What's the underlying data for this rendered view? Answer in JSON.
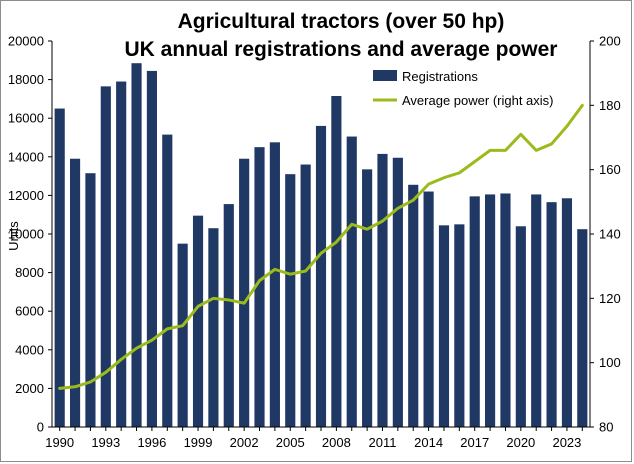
{
  "chart_data": {
    "type": "bar",
    "title": [
      "Agricultural tractors (over 50 hp)",
      "UK annual registrations and average power"
    ],
    "ylabel": "Units",
    "ylim": [
      0,
      20000
    ],
    "y_ticks": [
      "0",
      "2000",
      "4000",
      "6000",
      "8000",
      "10000",
      "12000",
      "14000",
      "16000",
      "18000",
      "20000"
    ],
    "y2lim": [
      80,
      200
    ],
    "y2_ticks": [
      "80",
      "100",
      "120",
      "140",
      "160",
      "180",
      "200"
    ],
    "xlim": [
      1990,
      2024
    ],
    "x_ticks": [
      "1990",
      "1993",
      "1996",
      "1999",
      "2002",
      "2005",
      "2008",
      "2011",
      "2014",
      "2017",
      "2020",
      "2023"
    ],
    "x": [
      1990,
      1991,
      1992,
      1993,
      1994,
      1995,
      1996,
      1997,
      1998,
      1999,
      2000,
      2001,
      2002,
      2003,
      2004,
      2005,
      2006,
      2007,
      2008,
      2009,
      2010,
      2011,
      2012,
      2013,
      2014,
      2015,
      2016,
      2017,
      2018,
      2019,
      2020,
      2021,
      2022,
      2023,
      2024
    ],
    "series": [
      {
        "name": "Registrations",
        "type": "bar",
        "axis": "left",
        "color": "#1f3864",
        "values": [
          16500,
          13900,
          13150,
          17650,
          17900,
          18850,
          18450,
          15150,
          9500,
          10950,
          10300,
          11550,
          13900,
          14500,
          14750,
          13100,
          13600,
          15600,
          17150,
          15050,
          13350,
          14150,
          13950,
          12550,
          12200,
          10450,
          10500,
          11950,
          12050,
          12100,
          10400,
          12050,
          11650,
          11850,
          10250
        ]
      },
      {
        "name": "Average power (right axis)",
        "type": "line",
        "axis": "right",
        "color": "#9bbb1c",
        "values": [
          92,
          92.5,
          94,
          97,
          101,
          104.5,
          107,
          110.5,
          111.5,
          117.5,
          120,
          119.5,
          118.5,
          125.5,
          129,
          127.5,
          128.5,
          134,
          137.5,
          143,
          141.5,
          144,
          148,
          150.5,
          155.5,
          157.5,
          159,
          162.5,
          166,
          166,
          171,
          166,
          168,
          173.5,
          180
        ]
      }
    ],
    "legend_position": "top-right",
    "grid": false
  }
}
